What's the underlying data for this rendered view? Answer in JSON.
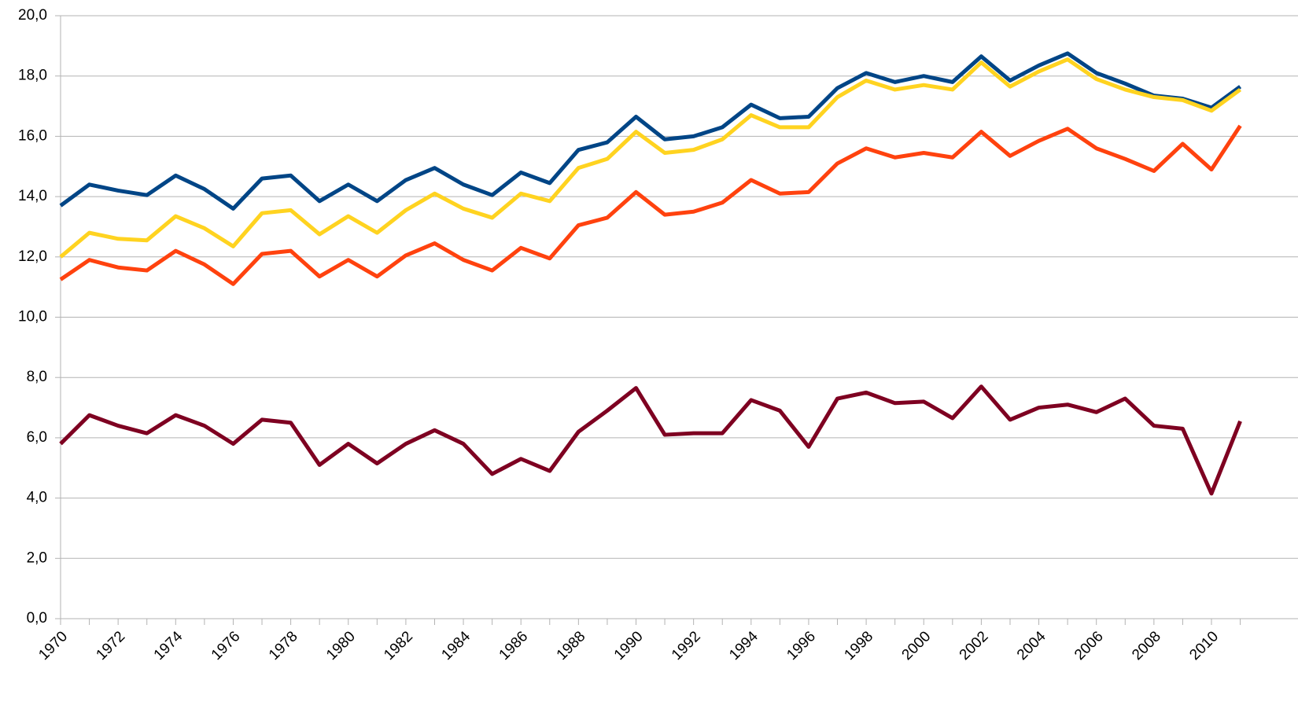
{
  "chart_data": {
    "type": "line",
    "categories": [
      "1970",
      null,
      "1972",
      null,
      "1974",
      null,
      "1976",
      null,
      "1978",
      null,
      "1980",
      null,
      "1982",
      null,
      "1984",
      null,
      "1986",
      null,
      "1988",
      null,
      "1990",
      null,
      "1992",
      null,
      "1994",
      null,
      "1996",
      null,
      "1998",
      null,
      "2000",
      null,
      "2002",
      null,
      "2004",
      null,
      "2006",
      null,
      "2008",
      null,
      "2010",
      null
    ],
    "series": [
      {
        "color": "#004586",
        "values": [
          13.7,
          14.4,
          14.2,
          14.05,
          14.7,
          14.25,
          13.6,
          14.6,
          14.7,
          13.85,
          14.4,
          13.85,
          14.55,
          14.95,
          14.4,
          14.05,
          14.8,
          14.45,
          15.55,
          15.8,
          16.65,
          15.9,
          16.0,
          16.3,
          17.05,
          16.6,
          16.65,
          17.6,
          18.1,
          17.8,
          18.0,
          17.8,
          18.65,
          17.85,
          18.35,
          18.75,
          18.1,
          17.75,
          17.35,
          17.25,
          16.95,
          17.65
        ]
      },
      {
        "color": "#ffd320",
        "values": [
          12.0,
          12.8,
          12.6,
          12.55,
          13.35,
          12.95,
          12.35,
          13.45,
          13.55,
          12.75,
          13.35,
          12.8,
          13.55,
          14.1,
          13.6,
          13.3,
          14.1,
          13.85,
          14.95,
          15.25,
          16.15,
          15.45,
          15.55,
          15.9,
          16.7,
          16.3,
          16.3,
          17.3,
          17.85,
          17.55,
          17.7,
          17.55,
          18.45,
          17.65,
          18.15,
          18.55,
          17.9,
          17.55,
          17.3,
          17.2,
          16.85,
          17.55
        ]
      },
      {
        "color": "#ff420e",
        "values": [
          11.25,
          11.9,
          11.65,
          11.55,
          12.2,
          11.75,
          11.1,
          12.1,
          12.2,
          11.35,
          11.9,
          11.35,
          12.05,
          12.45,
          11.9,
          11.55,
          12.3,
          11.95,
          13.05,
          13.3,
          14.15,
          13.4,
          13.5,
          13.8,
          14.55,
          14.1,
          14.15,
          15.1,
          15.6,
          15.3,
          15.45,
          15.3,
          16.15,
          15.35,
          15.85,
          16.25,
          15.6,
          15.25,
          14.85,
          15.75,
          14.9,
          16.35
        ]
      },
      {
        "color": "#7e0021",
        "values": [
          5.8,
          6.75,
          6.4,
          6.15,
          6.75,
          6.4,
          5.8,
          6.6,
          6.5,
          5.1,
          5.8,
          5.15,
          5.8,
          6.25,
          5.8,
          4.8,
          5.3,
          4.9,
          6.2,
          6.9,
          7.65,
          6.1,
          6.15,
          6.15,
          7.25,
          6.9,
          5.7,
          7.3,
          7.5,
          7.15,
          7.2,
          6.65,
          7.7,
          6.6,
          7.0,
          7.1,
          6.85,
          7.3,
          6.4,
          6.3,
          4.15,
          6.55
        ]
      }
    ],
    "ylim": [
      0,
      20
    ],
    "yticks": [
      {
        "value": 0,
        "label": "0,0"
      },
      {
        "value": 2,
        "label": "2,0"
      },
      {
        "value": 4,
        "label": "4,0"
      },
      {
        "value": 6,
        "label": "6,0"
      },
      {
        "value": 8,
        "label": "8,0"
      },
      {
        "value": 10,
        "label": "10,0"
      },
      {
        "value": 12,
        "label": "12,0"
      },
      {
        "value": 14,
        "label": "14,0"
      },
      {
        "value": 16,
        "label": "16,0"
      },
      {
        "value": 18,
        "label": "18,0"
      },
      {
        "value": 20,
        "label": "20,0"
      }
    ],
    "grid": true
  }
}
